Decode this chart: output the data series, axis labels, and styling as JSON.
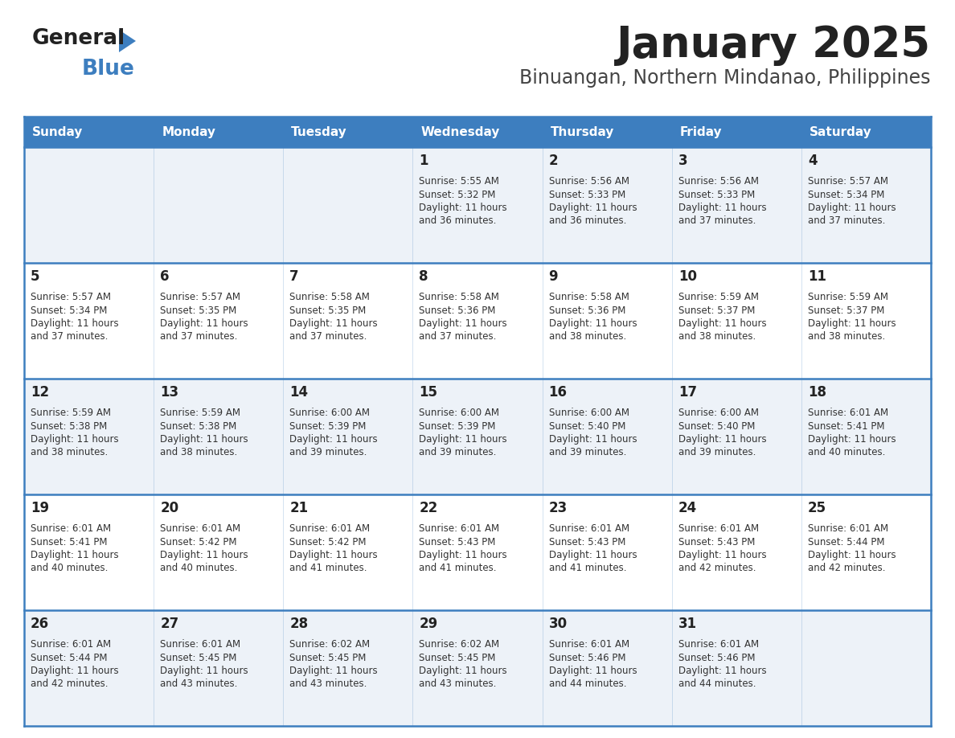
{
  "title": "January 2025",
  "subtitle": "Binuangan, Northern Mindanao, Philippines",
  "header_bg_color": "#3d7ebf",
  "header_text_color": "#ffffff",
  "row_bg_even": "#edf2f8",
  "row_bg_odd": "#ffffff",
  "border_color": "#3d7ebf",
  "day_headers": [
    "Sunday",
    "Monday",
    "Tuesday",
    "Wednesday",
    "Thursday",
    "Friday",
    "Saturday"
  ],
  "title_color": "#222222",
  "subtitle_color": "#444444",
  "day_number_color": "#222222",
  "cell_text_color": "#333333",
  "logo_general_color": "#222222",
  "logo_blue_color": "#3d7ebf",
  "logo_triangle_color": "#3d7ebf",
  "days": [
    {
      "day": 1,
      "col": 3,
      "row": 0,
      "sunrise": "5:55 AM",
      "sunset": "5:32 PM",
      "daylight": "11 hours and 36 minutes."
    },
    {
      "day": 2,
      "col": 4,
      "row": 0,
      "sunrise": "5:56 AM",
      "sunset": "5:33 PM",
      "daylight": "11 hours and 36 minutes."
    },
    {
      "day": 3,
      "col": 5,
      "row": 0,
      "sunrise": "5:56 AM",
      "sunset": "5:33 PM",
      "daylight": "11 hours and 37 minutes."
    },
    {
      "day": 4,
      "col": 6,
      "row": 0,
      "sunrise": "5:57 AM",
      "sunset": "5:34 PM",
      "daylight": "11 hours and 37 minutes."
    },
    {
      "day": 5,
      "col": 0,
      "row": 1,
      "sunrise": "5:57 AM",
      "sunset": "5:34 PM",
      "daylight": "11 hours and 37 minutes."
    },
    {
      "day": 6,
      "col": 1,
      "row": 1,
      "sunrise": "5:57 AM",
      "sunset": "5:35 PM",
      "daylight": "11 hours and 37 minutes."
    },
    {
      "day": 7,
      "col": 2,
      "row": 1,
      "sunrise": "5:58 AM",
      "sunset": "5:35 PM",
      "daylight": "11 hours and 37 minutes."
    },
    {
      "day": 8,
      "col": 3,
      "row": 1,
      "sunrise": "5:58 AM",
      "sunset": "5:36 PM",
      "daylight": "11 hours and 37 minutes."
    },
    {
      "day": 9,
      "col": 4,
      "row": 1,
      "sunrise": "5:58 AM",
      "sunset": "5:36 PM",
      "daylight": "11 hours and 38 minutes."
    },
    {
      "day": 10,
      "col": 5,
      "row": 1,
      "sunrise": "5:59 AM",
      "sunset": "5:37 PM",
      "daylight": "11 hours and 38 minutes."
    },
    {
      "day": 11,
      "col": 6,
      "row": 1,
      "sunrise": "5:59 AM",
      "sunset": "5:37 PM",
      "daylight": "11 hours and 38 minutes."
    },
    {
      "day": 12,
      "col": 0,
      "row": 2,
      "sunrise": "5:59 AM",
      "sunset": "5:38 PM",
      "daylight": "11 hours and 38 minutes."
    },
    {
      "day": 13,
      "col": 1,
      "row": 2,
      "sunrise": "5:59 AM",
      "sunset": "5:38 PM",
      "daylight": "11 hours and 38 minutes."
    },
    {
      "day": 14,
      "col": 2,
      "row": 2,
      "sunrise": "6:00 AM",
      "sunset": "5:39 PM",
      "daylight": "11 hours and 39 minutes."
    },
    {
      "day": 15,
      "col": 3,
      "row": 2,
      "sunrise": "6:00 AM",
      "sunset": "5:39 PM",
      "daylight": "11 hours and 39 minutes."
    },
    {
      "day": 16,
      "col": 4,
      "row": 2,
      "sunrise": "6:00 AM",
      "sunset": "5:40 PM",
      "daylight": "11 hours and 39 minutes."
    },
    {
      "day": 17,
      "col": 5,
      "row": 2,
      "sunrise": "6:00 AM",
      "sunset": "5:40 PM",
      "daylight": "11 hours and 39 minutes."
    },
    {
      "day": 18,
      "col": 6,
      "row": 2,
      "sunrise": "6:01 AM",
      "sunset": "5:41 PM",
      "daylight": "11 hours and 40 minutes."
    },
    {
      "day": 19,
      "col": 0,
      "row": 3,
      "sunrise": "6:01 AM",
      "sunset": "5:41 PM",
      "daylight": "11 hours and 40 minutes."
    },
    {
      "day": 20,
      "col": 1,
      "row": 3,
      "sunrise": "6:01 AM",
      "sunset": "5:42 PM",
      "daylight": "11 hours and 40 minutes."
    },
    {
      "day": 21,
      "col": 2,
      "row": 3,
      "sunrise": "6:01 AM",
      "sunset": "5:42 PM",
      "daylight": "11 hours and 41 minutes."
    },
    {
      "day": 22,
      "col": 3,
      "row": 3,
      "sunrise": "6:01 AM",
      "sunset": "5:43 PM",
      "daylight": "11 hours and 41 minutes."
    },
    {
      "day": 23,
      "col": 4,
      "row": 3,
      "sunrise": "6:01 AM",
      "sunset": "5:43 PM",
      "daylight": "11 hours and 41 minutes."
    },
    {
      "day": 24,
      "col": 5,
      "row": 3,
      "sunrise": "6:01 AM",
      "sunset": "5:43 PM",
      "daylight": "11 hours and 42 minutes."
    },
    {
      "day": 25,
      "col": 6,
      "row": 3,
      "sunrise": "6:01 AM",
      "sunset": "5:44 PM",
      "daylight": "11 hours and 42 minutes."
    },
    {
      "day": 26,
      "col": 0,
      "row": 4,
      "sunrise": "6:01 AM",
      "sunset": "5:44 PM",
      "daylight": "11 hours and 42 minutes."
    },
    {
      "day": 27,
      "col": 1,
      "row": 4,
      "sunrise": "6:01 AM",
      "sunset": "5:45 PM",
      "daylight": "11 hours and 43 minutes."
    },
    {
      "day": 28,
      "col": 2,
      "row": 4,
      "sunrise": "6:02 AM",
      "sunset": "5:45 PM",
      "daylight": "11 hours and 43 minutes."
    },
    {
      "day": 29,
      "col": 3,
      "row": 4,
      "sunrise": "6:02 AM",
      "sunset": "5:45 PM",
      "daylight": "11 hours and 43 minutes."
    },
    {
      "day": 30,
      "col": 4,
      "row": 4,
      "sunrise": "6:01 AM",
      "sunset": "5:46 PM",
      "daylight": "11 hours and 44 minutes."
    },
    {
      "day": 31,
      "col": 5,
      "row": 4,
      "sunrise": "6:01 AM",
      "sunset": "5:46 PM",
      "daylight": "11 hours and 44 minutes."
    }
  ]
}
